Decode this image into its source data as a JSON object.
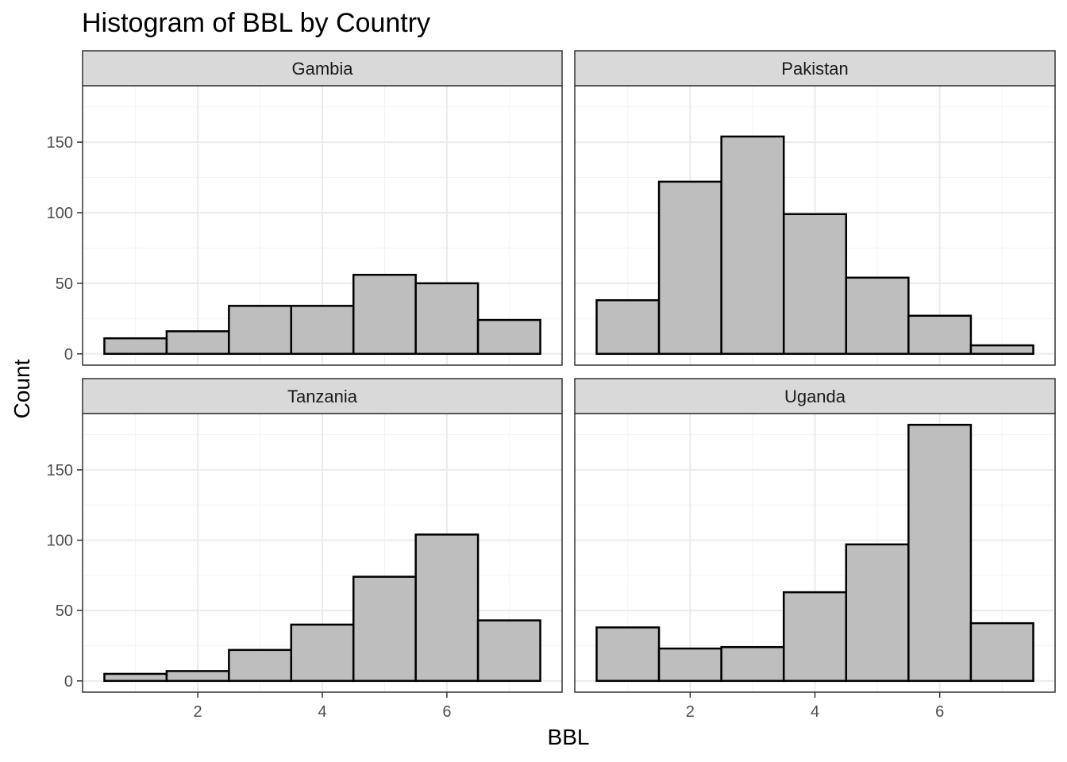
{
  "chart_data": {
    "type": "bar",
    "title": "Histogram of BBL by Country",
    "xlabel": "BBL",
    "ylabel": "Count",
    "xlim": [
      0.15,
      7.85
    ],
    "ylim": [
      -8,
      190
    ],
    "x_ticks": [
      2,
      4,
      6
    ],
    "y_ticks": [
      0,
      50,
      100,
      150
    ],
    "grid": true,
    "bin_centers": [
      1,
      2,
      3,
      4,
      5,
      6,
      7
    ],
    "bin_width": 1,
    "bar_fill": "#bebebe",
    "bar_stroke": "#000000",
    "strip_fill": "#d9d9d9",
    "panels": [
      {
        "name": "Gambia",
        "values": [
          11,
          16,
          34,
          34,
          56,
          50,
          24
        ]
      },
      {
        "name": "Pakistan",
        "values": [
          38,
          122,
          154,
          99,
          54,
          27,
          6
        ]
      },
      {
        "name": "Tanzania",
        "values": [
          5,
          7,
          22,
          40,
          74,
          104,
          43
        ]
      },
      {
        "name": "Uganda",
        "values": [
          38,
          23,
          24,
          63,
          97,
          182,
          41
        ]
      }
    ]
  }
}
